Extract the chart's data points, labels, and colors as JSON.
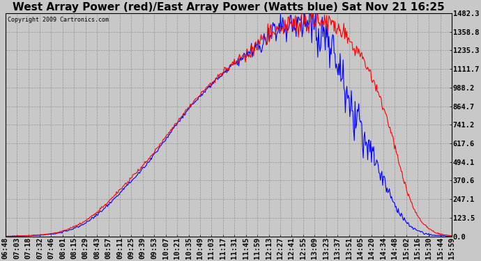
{
  "title": "West Array Power (red)/East Array Power (Watts blue) Sat Nov 21 16:25",
  "copyright": "Copyright 2009 Cartronics.com",
  "background_color": "#c8c8c8",
  "plot_background": "#c8c8c8",
  "grid_color": "#888888",
  "ytick_labels": [
    "0.0",
    "123.5",
    "247.1",
    "370.6",
    "494.1",
    "617.6",
    "741.2",
    "864.7",
    "988.2",
    "1111.7",
    "1235.3",
    "1358.8",
    "1482.3"
  ],
  "ytick_values": [
    0.0,
    123.5,
    247.1,
    370.6,
    494.1,
    617.6,
    741.2,
    864.7,
    988.2,
    1111.7,
    1235.3,
    1358.8,
    1482.3
  ],
  "ylim": [
    0.0,
    1482.3
  ],
  "x_labels": [
    "06:48",
    "07:03",
    "07:18",
    "07:32",
    "07:46",
    "08:01",
    "08:15",
    "08:29",
    "08:43",
    "08:57",
    "09:11",
    "09:25",
    "09:39",
    "09:53",
    "10:07",
    "10:21",
    "10:35",
    "10:49",
    "11:03",
    "11:17",
    "11:31",
    "11:45",
    "11:59",
    "12:13",
    "12:27",
    "12:41",
    "12:55",
    "13:09",
    "13:23",
    "13:37",
    "13:51",
    "14:05",
    "14:20",
    "14:34",
    "14:48",
    "15:02",
    "15:16",
    "15:30",
    "15:44",
    "15:59"
  ],
  "red_color": "#ff0000",
  "blue_color": "#0000ff",
  "title_fontsize": 11,
  "label_fontsize": 7.5,
  "red_data": [
    0,
    2,
    5,
    10,
    18,
    35,
    65,
    105,
    160,
    230,
    310,
    390,
    470,
    560,
    660,
    760,
    855,
    940,
    1020,
    1090,
    1150,
    1210,
    1270,
    1340,
    1390,
    1410,
    1420,
    1430,
    1420,
    1380,
    1310,
    1210,
    1060,
    860,
    600,
    320,
    140,
    50,
    15,
    3
  ],
  "blue_data": [
    0,
    2,
    4,
    8,
    15,
    28,
    55,
    90,
    145,
    210,
    290,
    370,
    450,
    545,
    645,
    748,
    845,
    932,
    1010,
    1080,
    1145,
    1205,
    1265,
    1325,
    1370,
    1395,
    1410,
    1395,
    1290,
    1120,
    900,
    720,
    540,
    380,
    210,
    100,
    40,
    12,
    4,
    1
  ],
  "red_noise_seed": 101,
  "blue_noise_seed": 202,
  "red_noise_scale": [
    1,
    1,
    1,
    1,
    1,
    2,
    3,
    4,
    5,
    5,
    5,
    5,
    5,
    5,
    5,
    5,
    5,
    5,
    8,
    8,
    15,
    20,
    25,
    30,
    35,
    40,
    45,
    40,
    35,
    30,
    25,
    20,
    15,
    12,
    10,
    8,
    5,
    3,
    2,
    1
  ],
  "blue_noise_scale": [
    1,
    1,
    1,
    1,
    1,
    2,
    3,
    4,
    5,
    5,
    5,
    5,
    5,
    5,
    5,
    5,
    5,
    5,
    8,
    8,
    15,
    20,
    25,
    35,
    40,
    45,
    55,
    65,
    80,
    90,
    85,
    70,
    50,
    30,
    15,
    8,
    5,
    3,
    2,
    1
  ]
}
